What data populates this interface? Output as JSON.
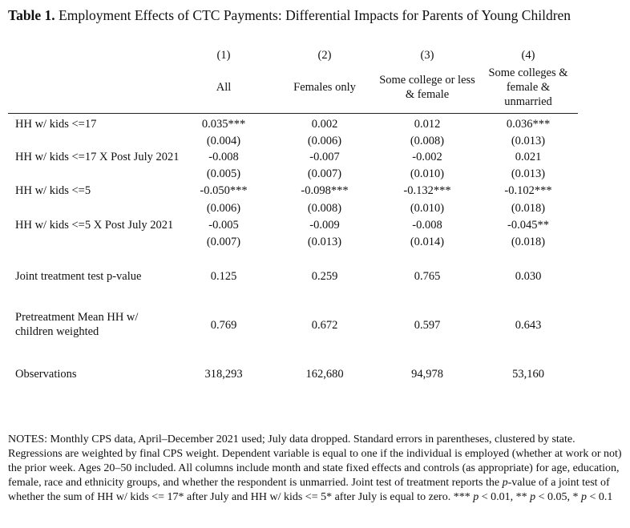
{
  "title": {
    "label": "Table 1.",
    "text": "Employment Effects of CTC Payments: Differential Impacts for Parents of Young Children"
  },
  "columns": [
    {
      "num": "(1)",
      "head": "All"
    },
    {
      "num": "(2)",
      "head": "Females only"
    },
    {
      "num": "(3)",
      "head": "Some college or less & female"
    },
    {
      "num": "(4)",
      "head": "Some colleges & female & unmarried"
    }
  ],
  "rows": [
    {
      "label": "HH w/ kids <=17",
      "coef": [
        "0.035***",
        "0.002",
        "0.012",
        "0.036***"
      ],
      "se": [
        "(0.004)",
        "(0.006)",
        "(0.008)",
        "(0.013)"
      ]
    },
    {
      "label": "HH w/ kids <=17 X Post July 2021",
      "coef": [
        "-0.008",
        "-0.007",
        "-0.002",
        "0.021"
      ],
      "se": [
        "(0.005)",
        "(0.007)",
        "(0.010)",
        "(0.013)"
      ]
    },
    {
      "label": "HH w/ kids <=5",
      "coef": [
        "-0.050***",
        "-0.098***",
        "-0.132***",
        "-0.102***"
      ],
      "se": [
        "(0.006)",
        "(0.008)",
        "(0.010)",
        "(0.018)"
      ]
    },
    {
      "label": "HH w/ kids <=5 X Post July 2021",
      "coef": [
        "-0.005",
        "-0.009",
        "-0.008",
        "-0.045**"
      ],
      "se": [
        "(0.007)",
        "(0.013)",
        "(0.014)",
        "(0.018)"
      ]
    }
  ],
  "stats": [
    {
      "label": "Joint treatment test p-value",
      "values": [
        "0.125",
        "0.259",
        "0.765",
        "0.030"
      ]
    },
    {
      "label": "Pretreatment Mean HH w/ children weighted",
      "values": [
        "0.769",
        "0.672",
        "0.597",
        "0.643"
      ]
    },
    {
      "label": "Observations",
      "values": [
        "318,293",
        "162,680",
        "94,978",
        "53,160"
      ]
    }
  ],
  "notes": {
    "part1": "NOTES: Monthly CPS data, April–December 2021 used; July data dropped. Standard errors in parentheses, clustered by state. Regressions are weighted by final CPS weight. Dependent variable is equal to one if the individual is employed (whether at work or not) the prior week. Ages 20–50 included. All columns include month and state fixed effects and controls (as appropriate) for age, education, female, race and ethnicity groups, and whether the respondent is unmarried. Joint test of treatment reports the ",
    "p_italic": "p",
    "part2": "-value of a joint test of whether the sum of HH w/ kids <= 17* after July and HH w/ kids <= 5* after July is equal to zero. *** ",
    "sig1": "< 0.01, ** ",
    "sig2": "< 0.05, * ",
    "sig3": "< 0.1"
  }
}
